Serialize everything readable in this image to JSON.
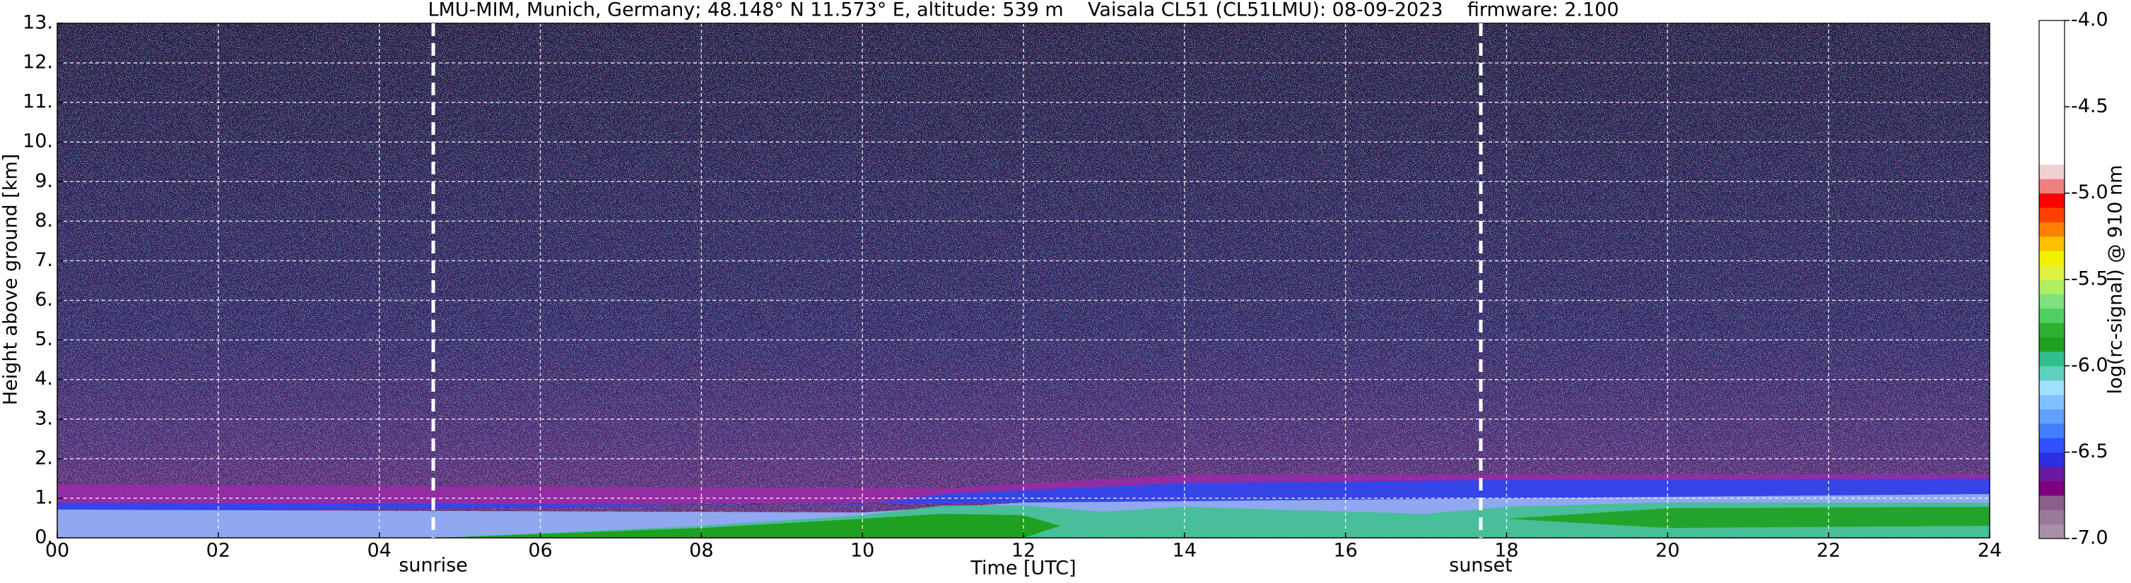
{
  "chart_data": {
    "type": "heatmap",
    "title": "LMU-MIM, Munich, Germany; 48.148° N 11.573° E, altitude: 539 m    Vaisala CL51 (CL51LMU): 08-09-2023    firmware: 2.100",
    "xlabel": "Time [UTC]",
    "ylabel": "Height above ground [km]",
    "xlim": [
      0,
      24
    ],
    "xticks": [
      {
        "value": 0,
        "label": "00"
      },
      {
        "value": 2,
        "label": "02"
      },
      {
        "value": 4,
        "label": "04"
      },
      {
        "value": 6,
        "label": "06"
      },
      {
        "value": 8,
        "label": "08"
      },
      10,
      12,
      14,
      16,
      18,
      20,
      22,
      24
    ],
    "ylim": [
      0,
      13
    ],
    "yticks": [
      {
        "value": 0,
        "label": "0."
      },
      {
        "value": 1,
        "label": "1."
      },
      {
        "value": 2,
        "label": "2."
      },
      {
        "value": 3,
        "label": "3."
      },
      {
        "value": 4,
        "label": "4."
      },
      {
        "value": 5,
        "label": "5."
      },
      {
        "value": 6,
        "label": "6."
      },
      {
        "value": 7,
        "label": "7."
      },
      {
        "value": 8,
        "label": "8."
      },
      {
        "value": 9,
        "label": "9."
      },
      {
        "value": 10,
        "label": "10."
      },
      {
        "value": 11,
        "label": "11."
      },
      {
        "value": 12,
        "label": "12."
      },
      {
        "value": 13,
        "label": "13."
      }
    ],
    "grid": true,
    "annotations": [
      {
        "text": "sunrise",
        "x": 4.67
      },
      {
        "text": "sunset",
        "x": 17.68
      }
    ],
    "colorbar": {
      "label": "log(rc-signal) @ 910 nm",
      "lim": [
        -7,
        -4
      ],
      "ticks": [
        {
          "value": -7,
          "label": "-7.0"
        },
        -6.5,
        {
          "value": -6,
          "label": "-6.0"
        },
        -5.5,
        {
          "value": -5,
          "label": "-5.0"
        },
        -4.5,
        {
          "value": -4,
          "label": "-4.0"
        }
      ],
      "colors": [
        "#a890a8",
        "#9a7a9a",
        "#8a608a",
        "#800080",
        "#6a1aa0",
        "#2a30e0",
        "#3050ff",
        "#4080ff",
        "#60a0ff",
        "#80c0ff",
        "#a0e0ff",
        "#60d0c0",
        "#30c090",
        "#20a020",
        "#30b030",
        "#50d060",
        "#80e080",
        "#b0f060",
        "#e0f040",
        "#f0f000",
        "#ffc000",
        "#ff8000",
        "#ff4000",
        "#ff0000",
        "#f08080",
        "#f0d0d0",
        "#ffffff",
        "#ffffff",
        "#ffffff",
        "#ffffff",
        "#ffffff",
        "#ffffff",
        "#ffffff",
        "#ffffff",
        "#ffffff",
        "#ffffff"
      ]
    }
  }
}
